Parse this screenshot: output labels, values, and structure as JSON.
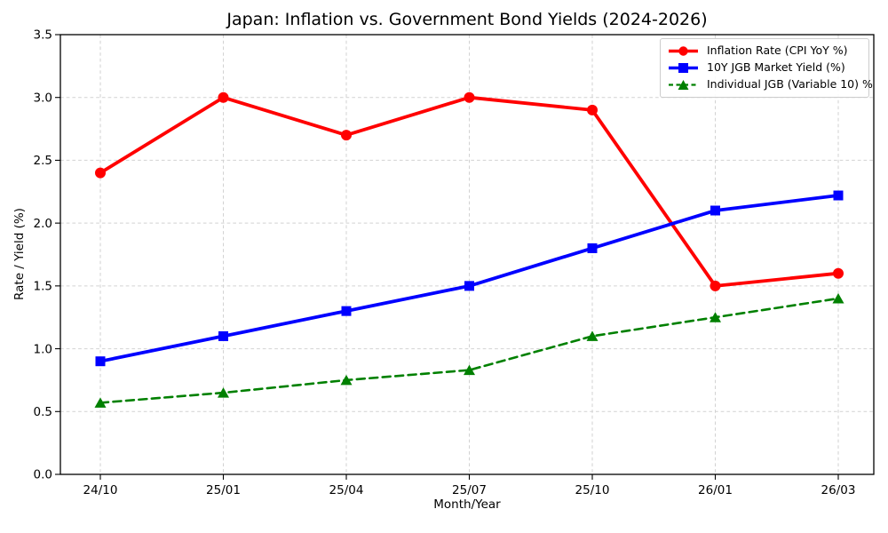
{
  "chart_data": {
    "type": "line",
    "title": "Japan: Inflation vs. Government Bond Yields (2024-2026)",
    "xlabel": "Month/Year",
    "ylabel": "Rate / Yield (%)",
    "ylim": [
      0.0,
      3.5
    ],
    "yticks": [
      "0.0",
      "0.5",
      "1.0",
      "1.5",
      "2.0",
      "2.5",
      "3.0",
      "3.5"
    ],
    "grid": true,
    "legend_position": "upper right",
    "categories": [
      "24/10",
      "25/01",
      "25/04",
      "25/07",
      "25/10",
      "26/01",
      "26/03"
    ],
    "series": [
      {
        "name": "Inflation Rate (CPI YoY %)",
        "values": [
          2.4,
          3.0,
          2.7,
          3.0,
          2.9,
          1.5,
          1.6
        ],
        "color": "#ff0000",
        "marker": "circle",
        "line_style": "solid"
      },
      {
        "name": "10Y JGB Market Yield (%)",
        "values": [
          0.9,
          1.1,
          1.3,
          1.5,
          1.8,
          2.1,
          2.22
        ],
        "color": "#0000ff",
        "marker": "square",
        "line_style": "solid"
      },
      {
        "name": "Individual JGB (Variable 10) %",
        "values": [
          0.57,
          0.65,
          0.75,
          0.83,
          1.1,
          1.25,
          1.4
        ],
        "color": "#008000",
        "marker": "triangle",
        "line_style": "dashed"
      }
    ]
  }
}
